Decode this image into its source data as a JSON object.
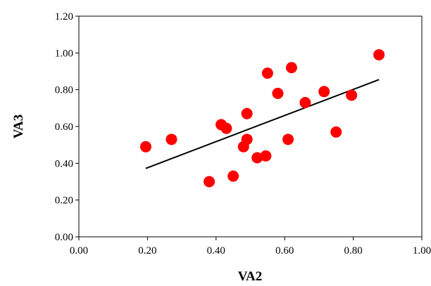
{
  "chart_data": {
    "type": "scatter",
    "title": "",
    "xlabel": "VA2",
    "ylabel": "VA3",
    "xlim": [
      0,
      1
    ],
    "ylim": [
      0,
      1.2
    ],
    "x_ticks": [
      "0.00",
      "0.20",
      "0.40",
      "0.60",
      "0.80",
      "1.00"
    ],
    "y_ticks": [
      "0.00",
      "0.20",
      "0.40",
      "0.60",
      "0.80",
      "1.00",
      "1.20"
    ],
    "grid": false,
    "legend": "none",
    "points": [
      {
        "x": 0.195,
        "y": 0.49
      },
      {
        "x": 0.27,
        "y": 0.53
      },
      {
        "x": 0.38,
        "y": 0.3
      },
      {
        "x": 0.415,
        "y": 0.61
      },
      {
        "x": 0.43,
        "y": 0.59
      },
      {
        "x": 0.45,
        "y": 0.33
      },
      {
        "x": 0.48,
        "y": 0.49
      },
      {
        "x": 0.49,
        "y": 0.53
      },
      {
        "x": 0.49,
        "y": 0.67
      },
      {
        "x": 0.52,
        "y": 0.43
      },
      {
        "x": 0.545,
        "y": 0.44
      },
      {
        "x": 0.55,
        "y": 0.89
      },
      {
        "x": 0.58,
        "y": 0.78
      },
      {
        "x": 0.61,
        "y": 0.53
      },
      {
        "x": 0.62,
        "y": 0.92
      },
      {
        "x": 0.66,
        "y": 0.73
      },
      {
        "x": 0.715,
        "y": 0.79
      },
      {
        "x": 0.75,
        "y": 0.57
      },
      {
        "x": 0.795,
        "y": 0.77
      },
      {
        "x": 0.875,
        "y": 0.99
      }
    ],
    "trendline": {
      "x_start": 0.195,
      "y_start": 0.372,
      "x_end": 0.875,
      "y_end": 0.855
    },
    "marker_color": "#ff0000",
    "line_color": "#000000"
  }
}
